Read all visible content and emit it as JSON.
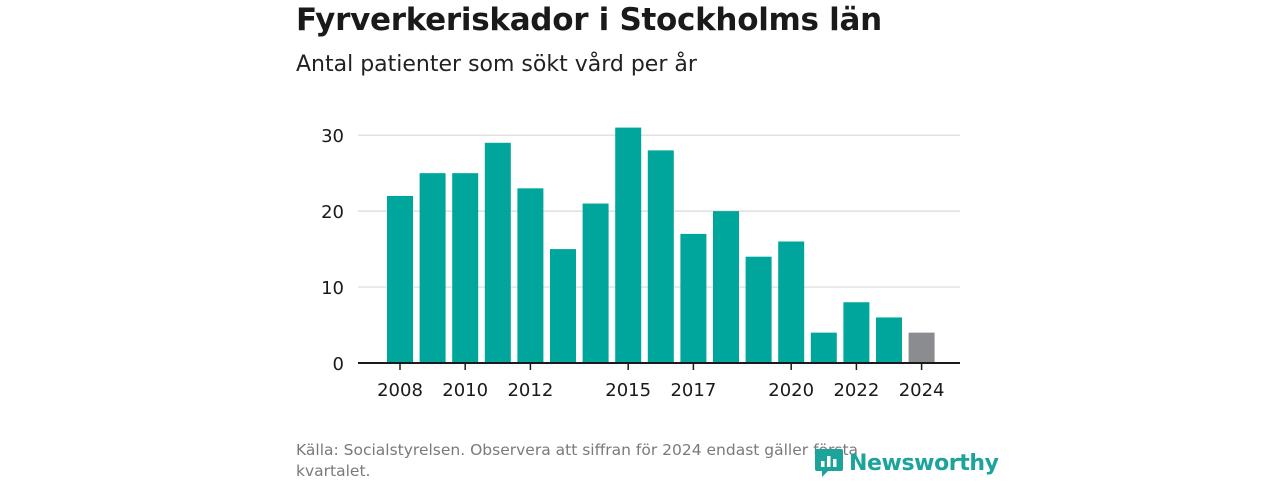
{
  "header": {
    "title": "Fyrverkeriskador i Stockholms län",
    "subtitle": "Antal patienter som sökt vård per år"
  },
  "footer": {
    "source": "Källa: Socialstyrelsen. Observera att siffran för 2024 endast gäller första kvartalet.",
    "brand": "Newsworthy",
    "brand_icon": "newsworthy-logo-icon"
  },
  "colors": {
    "bar": "#00a69c",
    "bar_partial": "#8b8c90",
    "brand": "#1ba39c"
  },
  "chart_data": {
    "type": "bar",
    "title": "Fyrverkeriskador i Stockholms län",
    "subtitle": "Antal patienter som sökt vård per år",
    "xlabel": "",
    "ylabel": "",
    "categories": [
      "2008",
      "2009",
      "2010",
      "2011",
      "2012",
      "2013",
      "2014",
      "2015",
      "2016",
      "2017",
      "2018",
      "2019",
      "2020",
      "2021",
      "2022",
      "2023",
      "2024"
    ],
    "values": [
      22,
      25,
      25,
      29,
      23,
      15,
      21,
      31,
      28,
      17,
      20,
      14,
      16,
      4,
      8,
      6,
      4
    ],
    "highlight_last_category": "2024",
    "xticks": [
      "2008",
      "2010",
      "2012",
      "2015",
      "2017",
      "2020",
      "2022",
      "2024"
    ],
    "yticks": [
      0,
      10,
      20,
      30
    ],
    "ylim": [
      0,
      32
    ],
    "grid": "horizontal",
    "legend": "none"
  }
}
